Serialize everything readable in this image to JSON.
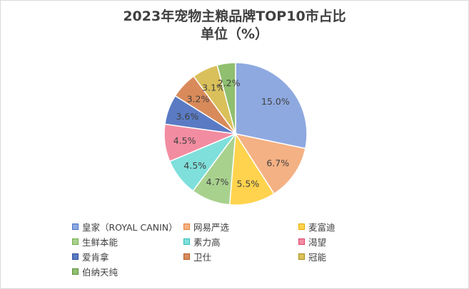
{
  "chart_data": {
    "type": "pie",
    "title": "2023年宠物主粮品牌TOP10市占比",
    "subtitle": "单位（%）",
    "slices": [
      {
        "label": "皇家（ROYAL CANIN）",
        "value": 15.0,
        "value_label": "15.0%",
        "color": "#8ea9e0",
        "edge": "#4472c4"
      },
      {
        "label": "网易严选",
        "value": 6.7,
        "value_label": "6.7%",
        "color": "#f4b183",
        "edge": "#ed7d31"
      },
      {
        "label": "麦富迪",
        "value": 5.5,
        "value_label": "5.5%",
        "color": "#ffd34d",
        "edge": "#e6ac00"
      },
      {
        "label": "生鲜本能",
        "value": 4.7,
        "value_label": "4.7%",
        "color": "#a9d18e",
        "edge": "#70ad47"
      },
      {
        "label": "素力高",
        "value": 4.5,
        "value_label": "4.5%",
        "color": "#7fdfdb",
        "edge": "#2fbfb7"
      },
      {
        "label": "渴望",
        "value": 4.5,
        "value_label": "4.5%",
        "color": "#f28ca1",
        "edge": "#e0466a"
      },
      {
        "label": "爱肯拿",
        "value": 3.6,
        "value_label": "3.6%",
        "color": "#5a7bc4",
        "edge": "#2f4f9a"
      },
      {
        "label": "卫仕",
        "value": 3.2,
        "value_label": "3.2%",
        "color": "#d98a5a",
        "edge": "#b45f2a"
      },
      {
        "label": "冠能",
        "value": 3.1,
        "value_label": "3.1%",
        "color": "#d9c05a",
        "edge": "#a88f1f"
      },
      {
        "label": "伯纳天纯",
        "value": 2.2,
        "value_label": "2.2%",
        "color": "#8fbf6f",
        "edge": "#5e8f3f"
      }
    ],
    "legend_position": "bottom"
  }
}
